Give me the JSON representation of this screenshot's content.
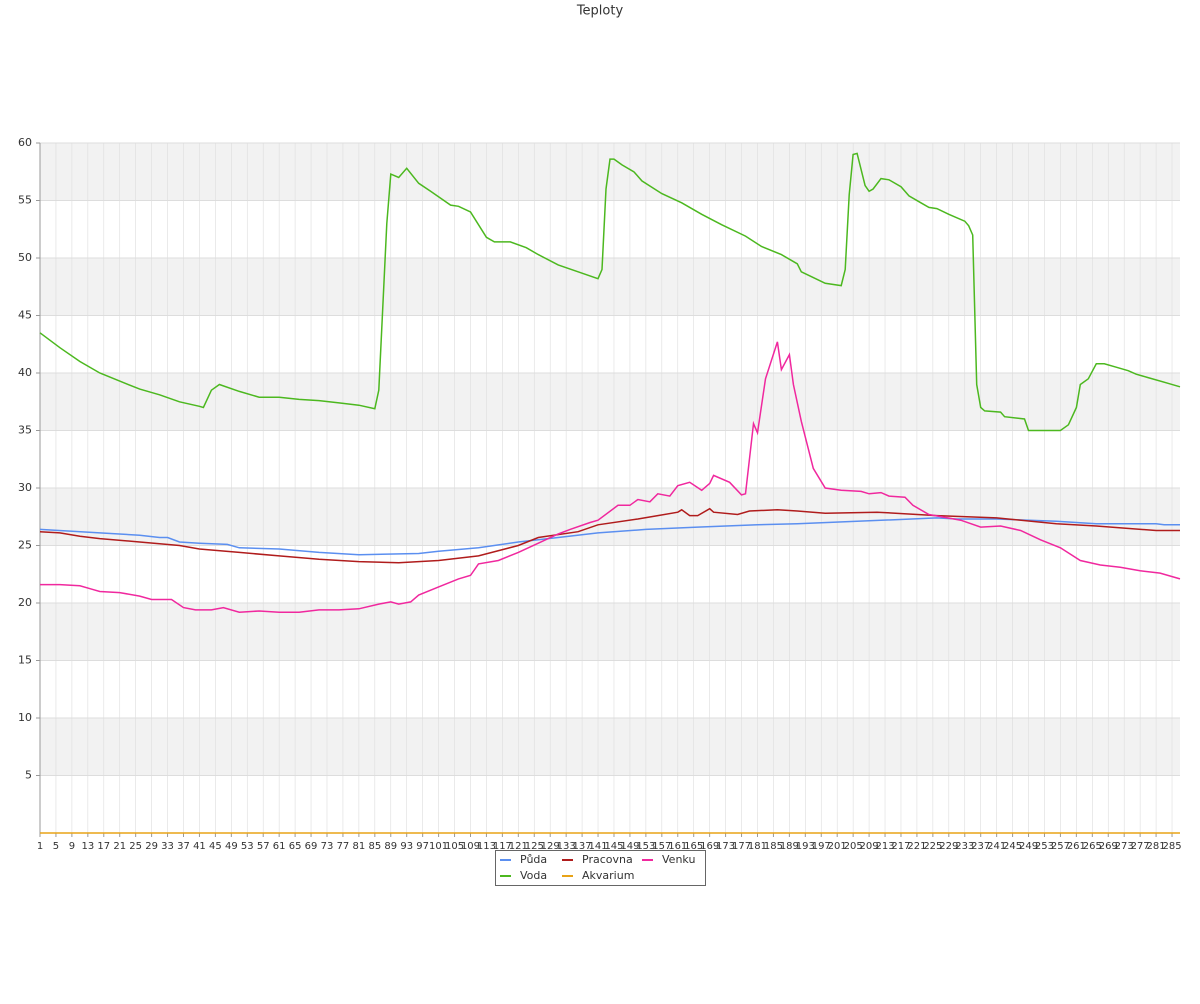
{
  "chart_data": {
    "type": "line",
    "title": "Teploty",
    "xlim": [
      1,
      287
    ],
    "ylim": [
      0,
      60
    ],
    "yticks": [
      5,
      10,
      15,
      20,
      25,
      30,
      35,
      40,
      45,
      50,
      55,
      60
    ],
    "xticks": [
      1,
      5,
      9,
      13,
      17,
      21,
      25,
      29,
      33,
      37,
      41,
      45,
      49,
      53,
      57,
      61,
      65,
      69,
      73,
      77,
      81,
      85,
      89,
      93,
      97,
      101,
      105,
      109,
      113,
      117,
      121,
      125,
      129,
      133,
      137,
      141,
      145,
      149,
      153,
      157,
      161,
      165,
      169,
      173,
      177,
      181,
      185,
      189,
      193,
      197,
      201,
      205,
      209,
      213,
      217,
      221,
      225,
      229,
      233,
      237,
      241,
      245,
      249,
      253,
      257,
      261,
      265,
      269,
      273,
      277,
      281,
      285
    ],
    "grid": true,
    "series": [
      {
        "name": "Půda",
        "color": "#5b8ff0",
        "x": [
          1,
          16,
          26,
          31,
          33,
          36,
          41,
          48,
          51,
          61,
          71,
          81,
          96,
          101,
          111,
          121,
          131,
          141,
          153,
          166,
          181,
          191,
          206,
          226,
          231,
          241,
          256,
          266,
          281,
          283,
          287
        ],
        "values": [
          26.4,
          26.1,
          25.9,
          25.7,
          25.7,
          25.3,
          25.2,
          25.1,
          24.8,
          24.7,
          24.4,
          24.2,
          24.3,
          24.5,
          24.8,
          25.3,
          25.7,
          26.1,
          26.4,
          26.6,
          26.8,
          26.9,
          27.1,
          27.4,
          27.3,
          27.3,
          27.1,
          26.9,
          26.9,
          26.8,
          26.8
        ]
      },
      {
        "name": "Voda",
        "color": "#4cb81f",
        "x": [
          1,
          6,
          11,
          16,
          21,
          26,
          31,
          36,
          41,
          42,
          44,
          46,
          51,
          56,
          61,
          66,
          71,
          76,
          81,
          85,
          86,
          88,
          89,
          91,
          93,
          96,
          99,
          104,
          106,
          109,
          113,
          115,
          119,
          123,
          126,
          131,
          136,
          141,
          142,
          143,
          144,
          145,
          147,
          150,
          152,
          157,
          162,
          167,
          172,
          178,
          182,
          187,
          191,
          192,
          195,
          198,
          202,
          203,
          204,
          205,
          206,
          208,
          209,
          210,
          212,
          214,
          217,
          219,
          222,
          224,
          226,
          229,
          233,
          234,
          235,
          236,
          237,
          238,
          242,
          243,
          248,
          249,
          257,
          259,
          261,
          262,
          264,
          266,
          268,
          271,
          274,
          276,
          279,
          284,
          287
        ],
        "values": [
          43.5,
          42.2,
          41,
          40,
          39.3,
          38.6,
          38.1,
          37.5,
          37.1,
          37,
          38.5,
          39,
          38.4,
          37.9,
          37.9,
          37.7,
          37.6,
          37.4,
          37.2,
          36.9,
          38.5,
          53,
          57.3,
          57,
          57.8,
          56.5,
          55.8,
          54.6,
          54.5,
          54,
          51.8,
          51.4,
          51.4,
          50.9,
          50.3,
          49.4,
          48.8,
          48.2,
          49,
          56,
          58.6,
          58.6,
          58.1,
          57.5,
          56.7,
          55.6,
          54.8,
          53.8,
          52.9,
          51.9,
          51,
          50.3,
          49.5,
          48.8,
          48.3,
          47.8,
          47.6,
          49,
          55.5,
          59,
          59.1,
          56.3,
          55.8,
          56,
          56.9,
          56.8,
          56.2,
          55.4,
          54.8,
          54.4,
          54.3,
          53.8,
          53.2,
          52.8,
          52,
          39,
          37,
          36.7,
          36.6,
          36.2,
          36,
          35,
          35,
          35.5,
          37,
          39,
          39.5,
          40.8,
          40.8,
          40.5,
          40.2,
          39.9,
          39.6,
          39.1,
          38.8
        ]
      },
      {
        "name": "Akvarium",
        "color": "#e8a317",
        "x": [
          1,
          287
        ],
        "values": [
          0,
          0
        ]
      },
      {
        "name": "Pracovna",
        "color": "#b01c1c",
        "x": [
          1,
          6,
          11,
          16,
          26,
          36,
          41,
          51,
          61,
          71,
          81,
          91,
          101,
          111,
          121,
          126,
          136,
          141,
          151,
          156,
          161,
          162,
          164,
          166,
          169,
          170,
          176,
          179,
          186,
          191,
          198,
          211,
          226,
          241,
          256,
          266,
          281,
          287
        ],
        "values": [
          26.2,
          26.1,
          25.8,
          25.6,
          25.3,
          25,
          24.7,
          24.4,
          24.1,
          23.8,
          23.6,
          23.5,
          23.7,
          24.1,
          25,
          25.7,
          26.2,
          26.8,
          27.3,
          27.6,
          27.9,
          28.1,
          27.6,
          27.6,
          28.2,
          27.9,
          27.7,
          28,
          28.1,
          28,
          27.8,
          27.9,
          27.6,
          27.4,
          26.9,
          26.7,
          26.3,
          26.3
        ]
      },
      {
        "name": "Venku",
        "color": "#f0289e",
        "x": [
          1,
          6,
          11,
          14,
          16,
          21,
          26,
          29,
          34,
          37,
          40,
          44,
          47,
          51,
          56,
          61,
          66,
          71,
          76,
          81,
          86,
          89,
          91,
          94,
          96,
          101,
          106,
          109,
          111,
          116,
          121,
          126,
          131,
          134,
          139,
          141,
          146,
          149,
          151,
          154,
          156,
          159,
          161,
          164,
          167,
          169,
          170,
          174,
          177,
          178,
          180,
          181,
          183,
          186,
          187,
          189,
          190,
          192,
          195,
          198,
          202,
          207,
          209,
          212,
          214,
          218,
          220,
          224,
          232,
          237,
          242,
          247,
          252,
          257,
          262,
          267,
          272,
          277,
          282,
          287
        ],
        "values": [
          21.6,
          21.6,
          21.5,
          21.2,
          21,
          20.9,
          20.6,
          20.3,
          20.3,
          19.6,
          19.4,
          19.4,
          19.6,
          19.2,
          19.3,
          19.2,
          19.2,
          19.4,
          19.4,
          19.5,
          19.9,
          20.1,
          19.9,
          20.1,
          20.7,
          21.4,
          22.1,
          22.4,
          23.4,
          23.7,
          24.4,
          25.2,
          26,
          26.4,
          27,
          27.2,
          28.5,
          28.5,
          29,
          28.8,
          29.5,
          29.3,
          30.2,
          30.5,
          29.8,
          30.4,
          31.1,
          30.5,
          29.4,
          29.5,
          35.6,
          34.8,
          39.5,
          42.7,
          40.3,
          41.6,
          39,
          35.8,
          31.7,
          30,
          29.8,
          29.7,
          29.5,
          29.6,
          29.3,
          29.2,
          28.5,
          27.7,
          27.2,
          26.6,
          26.7,
          26.3,
          25.5,
          24.8,
          23.7,
          23.3,
          23.1,
          22.8,
          22.6,
          22.1
        ]
      }
    ]
  }
}
